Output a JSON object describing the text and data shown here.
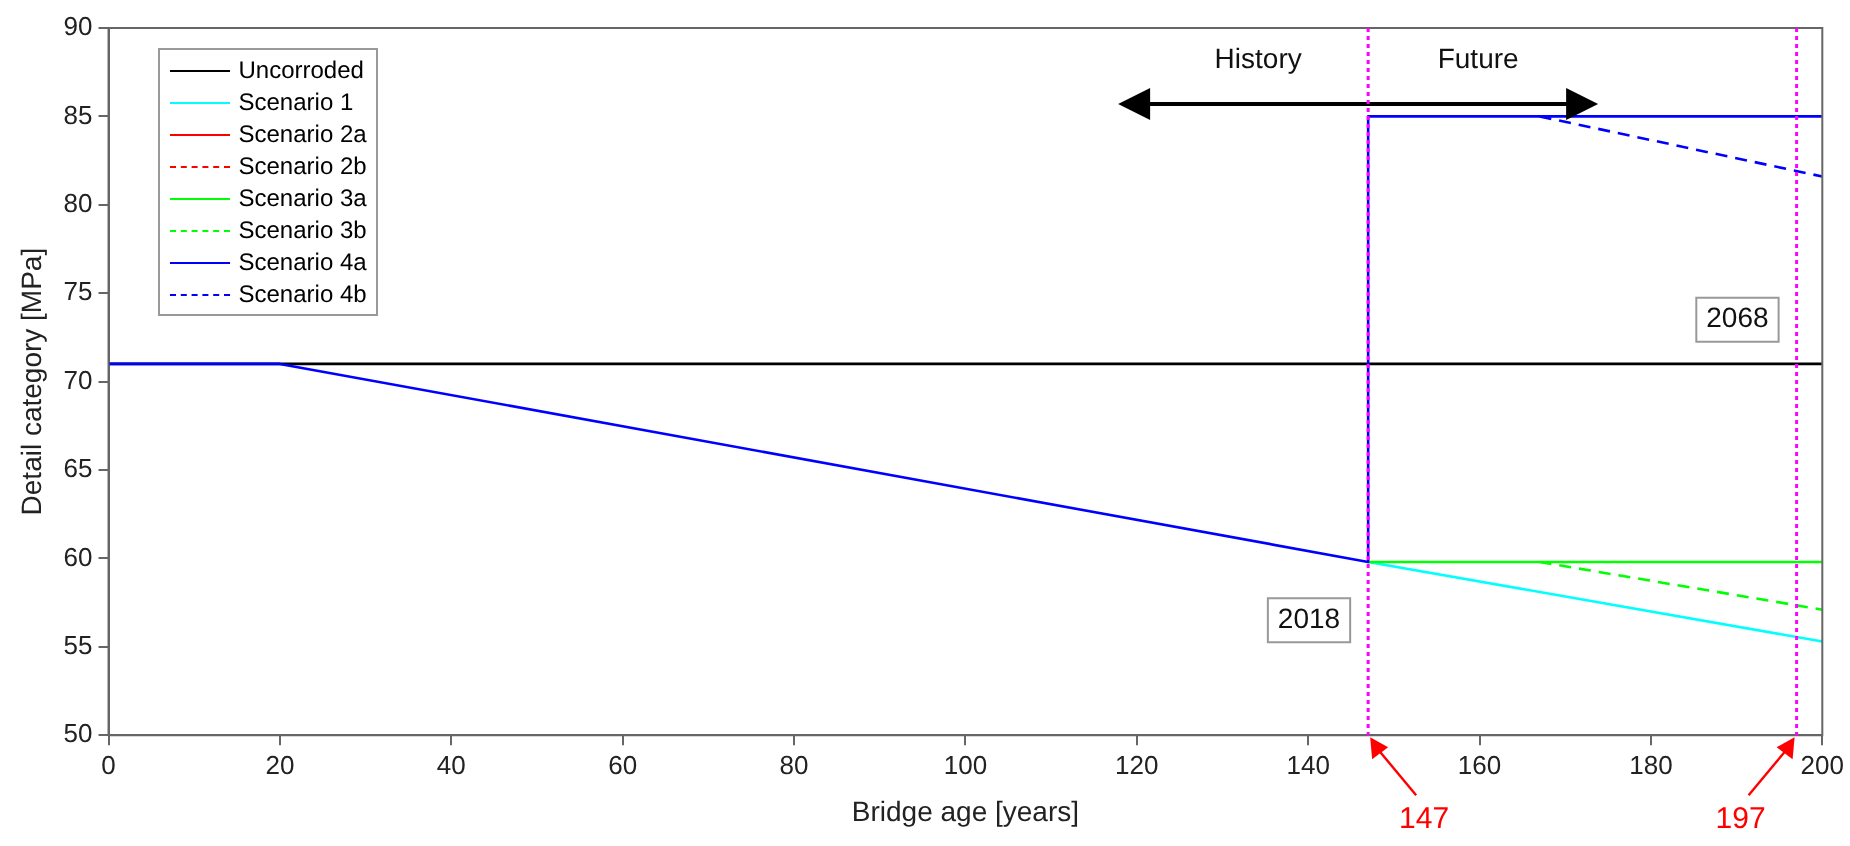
{
  "chart_data": {
    "type": "line",
    "xlabel": "Bridge age [years]",
    "ylabel": "Detail category [MPa]",
    "xlim": [
      0,
      200
    ],
    "xticks": [
      0,
      20,
      40,
      60,
      80,
      100,
      120,
      140,
      160,
      180,
      200
    ],
    "ylim": [
      50,
      90
    ],
    "yticks": [
      50,
      55,
      60,
      65,
      70,
      75,
      80,
      85,
      90
    ],
    "grid": false,
    "legend": "top left",
    "marker": "none",
    "series": [
      {
        "name": "Uncorroded",
        "color": "#000000",
        "line_style": "solid",
        "x": [
          0,
          200
        ],
        "values": [
          71,
          71
        ]
      },
      {
        "name": "Scenario 1",
        "color": "#00ffff",
        "line_style": "solid",
        "x": [
          147,
          200
        ],
        "values": [
          59.8,
          55.3
        ]
      },
      {
        "name": "Scenario 2a",
        "color": "#ff0000",
        "line_style": "solid"
      },
      {
        "name": "Scenario 2b",
        "color": "#ff0000",
        "line_style": "dashed"
      },
      {
        "name": "Scenario 3a",
        "color": "#00ff00",
        "line_style": "solid",
        "x": [
          147,
          200
        ],
        "values": [
          59.8,
          59.8
        ]
      },
      {
        "name": "Scenario 3b",
        "color": "#00ff00",
        "line_style": "dashed",
        "x": [
          167,
          200
        ],
        "values": [
          59.8,
          57.1
        ]
      },
      {
        "name": "Scenario 4a",
        "color": "#0000ff",
        "line_style": "solid",
        "x": [
          0,
          20,
          147,
          147,
          200
        ],
        "values": [
          71,
          71,
          59.8,
          85,
          85
        ]
      },
      {
        "name": "Scenario 4b",
        "color": "#0000ff",
        "line_style": "dashed",
        "x": [
          167,
          200
        ],
        "values": [
          85,
          81.6
        ]
      }
    ],
    "ref_lines": [
      {
        "axis": "x",
        "value": 147,
        "label": "147",
        "color": "#ff00ff",
        "line_style": "dotted"
      },
      {
        "axis": "x",
        "value": 197,
        "label": "197",
        "color": "#ff00ff",
        "line_style": "dotted"
      }
    ],
    "annotations": [
      "History",
      "Future",
      {
        "text": "2018",
        "x": 147,
        "y": 56.5
      },
      {
        "text": "2068",
        "x": 197,
        "y": 73.5
      }
    ]
  }
}
